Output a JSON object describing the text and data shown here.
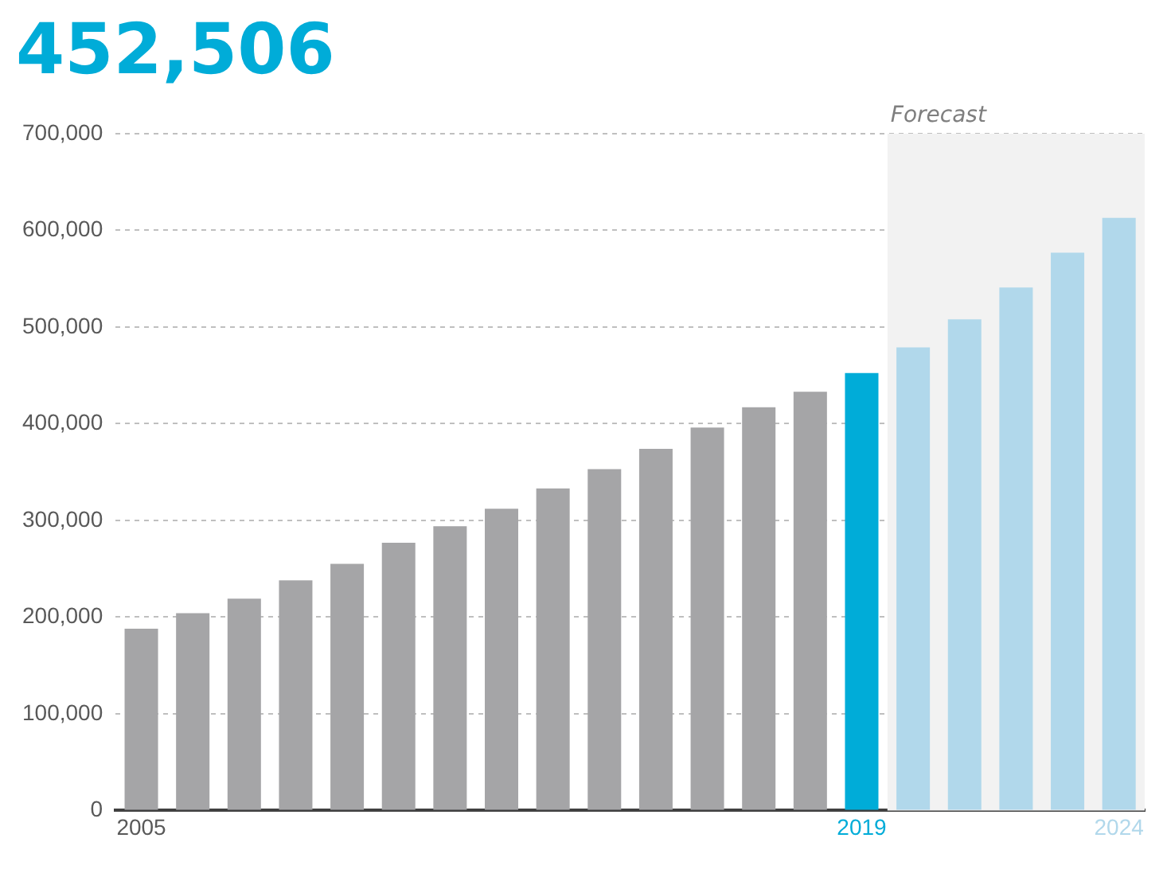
{
  "chart_data": {
    "type": "bar",
    "title": "452,506",
    "x": [
      2005,
      2006,
      2007,
      2008,
      2009,
      2010,
      2011,
      2012,
      2013,
      2014,
      2015,
      2016,
      2017,
      2018,
      2019,
      2020,
      2021,
      2022,
      2023,
      2024
    ],
    "values": [
      188000,
      204000,
      219000,
      238000,
      255000,
      277000,
      294000,
      312000,
      333000,
      353000,
      374000,
      396000,
      417000,
      433000,
      452506,
      479000,
      508000,
      541000,
      577000,
      613000
    ],
    "colors": [
      "#a5a5a7",
      "#a5a5a7",
      "#a5a5a7",
      "#a5a5a7",
      "#a5a5a7",
      "#a5a5a7",
      "#a5a5a7",
      "#a5a5a7",
      "#a5a5a7",
      "#a5a5a7",
      "#a5a5a7",
      "#a5a5a7",
      "#a5a5a7",
      "#a5a5a7",
      "#00acd8",
      "#b1d8eb",
      "#b1d8eb",
      "#b1d8eb",
      "#b1d8eb",
      "#b1d8eb"
    ],
    "xlim": [
      2004.5,
      2024.5
    ],
    "xticks": [
      2005,
      2019,
      2024
    ],
    "ylim": [
      0,
      700000
    ],
    "yticks": [
      {
        "value": 0,
        "label": "0"
      },
      {
        "value": 100000,
        "label": "100,000"
      },
      {
        "value": 200000,
        "label": "200,000"
      },
      {
        "value": 300000,
        "label": "300,000"
      },
      {
        "value": 400000,
        "label": "400,000"
      },
      {
        "value": 500000,
        "label": "500,000"
      },
      {
        "value": 600000,
        "label": "600,000"
      },
      {
        "value": 700000,
        "label": "700,000"
      }
    ],
    "bands": [
      {
        "axis": "x",
        "from": 2019.5,
        "to": 2024.5,
        "label": "Forecast",
        "color": "#f2f2f2"
      }
    ],
    "grid": "y",
    "legend": false
  }
}
